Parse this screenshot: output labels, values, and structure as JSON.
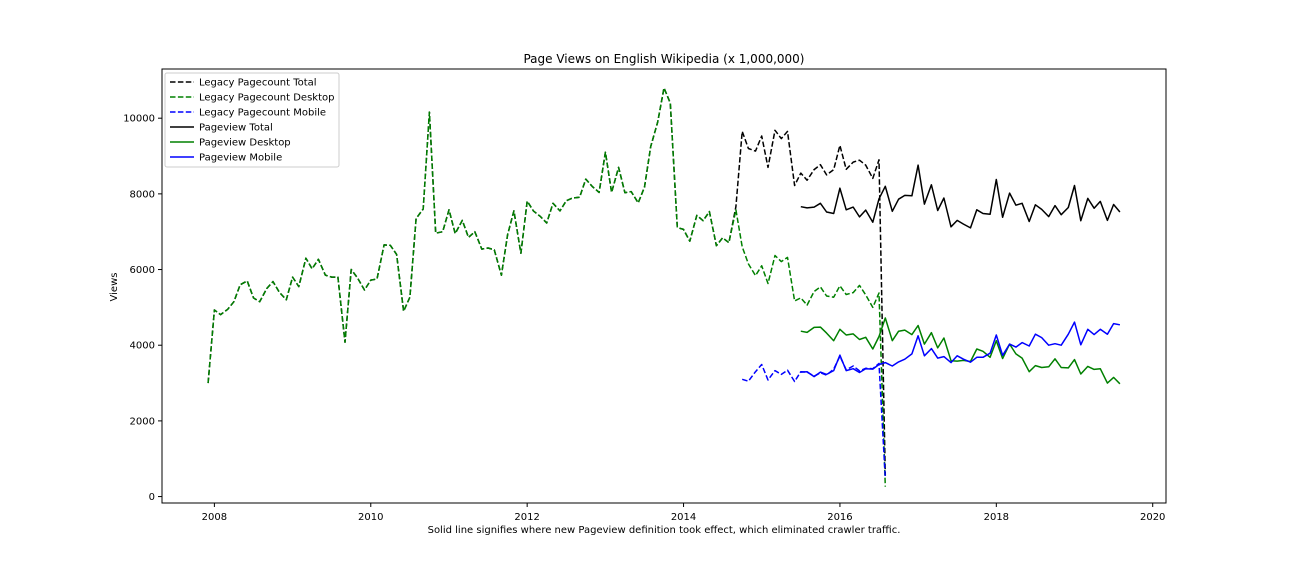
{
  "chart_data": {
    "type": "line",
    "title": "Page Views on English Wikipedia (x 1,000,000)",
    "xlabel": "Solid line signifies where new Pageview definition took effect, which eliminated crawler traffic.",
    "ylabel": "Views",
    "xlim": [
      2007.33,
      2020.17
    ],
    "ylim": [
      -170,
      11300
    ],
    "xticks": [
      2008,
      2010,
      2012,
      2014,
      2016,
      2018,
      2020
    ],
    "yticks": [
      0,
      2000,
      4000,
      6000,
      8000,
      10000
    ],
    "grid": false,
    "legend_position": "upper-left",
    "series": [
      {
        "name": "Legacy Pagecount Total",
        "color": "#000000",
        "style": "dashed",
        "x": [
          2007.92,
          2008.0,
          2008.08,
          2008.17,
          2008.25,
          2008.33,
          2008.42,
          2008.5,
          2008.58,
          2008.67,
          2008.75,
          2008.83,
          2008.92,
          2009.0,
          2009.08,
          2009.17,
          2009.25,
          2009.33,
          2009.42,
          2009.5,
          2009.58,
          2009.67,
          2009.75,
          2009.83,
          2009.92,
          2010.0,
          2010.08,
          2010.17,
          2010.25,
          2010.33,
          2010.42,
          2010.5,
          2010.58,
          2010.67,
          2010.75,
          2010.83,
          2010.92,
          2011.0,
          2011.08,
          2011.17,
          2011.25,
          2011.33,
          2011.42,
          2011.5,
          2011.58,
          2011.67,
          2011.75,
          2011.83,
          2011.92,
          2012.0,
          2012.08,
          2012.17,
          2012.25,
          2012.33,
          2012.42,
          2012.5,
          2012.58,
          2012.67,
          2012.75,
          2012.83,
          2012.92,
          2013.0,
          2013.08,
          2013.17,
          2013.25,
          2013.33,
          2013.42,
          2013.5,
          2013.58,
          2013.67,
          2013.75,
          2013.83,
          2013.92,
          2014.0,
          2014.08,
          2014.17,
          2014.25,
          2014.33,
          2014.42,
          2014.5,
          2014.58,
          2014.67,
          2014.75,
          2014.83,
          2014.92,
          2015.0,
          2015.08,
          2015.17,
          2015.25,
          2015.33,
          2015.42,
          2015.5,
          2015.58,
          2015.67,
          2015.75,
          2015.83,
          2015.92,
          2016.0,
          2016.08,
          2016.17,
          2016.25,
          2016.33,
          2016.42,
          2016.5,
          2016.58
        ],
        "y": [
          3000,
          4930,
          4810,
          4950,
          5150,
          5600,
          5700,
          5250,
          5150,
          5500,
          5680,
          5400,
          5200,
          5800,
          5550,
          6300,
          6020,
          6270,
          5850,
          5800,
          5800,
          4080,
          6000,
          5780,
          5460,
          5720,
          5750,
          6650,
          6640,
          6400,
          4900,
          5270,
          7350,
          7600,
          10160,
          6960,
          7000,
          7580,
          6950,
          7300,
          6850,
          7000,
          6540,
          6570,
          6520,
          5850,
          6920,
          7550,
          6430,
          7810,
          7550,
          7400,
          7230,
          7750,
          7550,
          7820,
          7890,
          7910,
          8390,
          8200,
          8040,
          9100,
          8040,
          8700,
          8030,
          8060,
          7760,
          8180,
          9250,
          9900,
          10800,
          10400,
          7110,
          7060,
          6750,
          7430,
          7290,
          7530,
          6630,
          6840,
          6710,
          7660,
          9650,
          9200,
          9130,
          9530,
          8700,
          9680,
          9460,
          9650,
          8220,
          8550,
          8360,
          8640,
          8770,
          8500,
          8640,
          9280,
          8650,
          8840,
          8890,
          8760,
          8410,
          8900,
          560
        ]
      },
      {
        "name": "Legacy Pagecount Desktop",
        "color": "#008000",
        "style": "dashed",
        "x": [
          2007.92,
          2008.0,
          2008.08,
          2008.17,
          2008.25,
          2008.33,
          2008.42,
          2008.5,
          2008.58,
          2008.67,
          2008.75,
          2008.83,
          2008.92,
          2009.0,
          2009.08,
          2009.17,
          2009.25,
          2009.33,
          2009.42,
          2009.5,
          2009.58,
          2009.67,
          2009.75,
          2009.83,
          2009.92,
          2010.0,
          2010.08,
          2010.17,
          2010.25,
          2010.33,
          2010.42,
          2010.5,
          2010.58,
          2010.67,
          2010.75,
          2010.83,
          2010.92,
          2011.0,
          2011.08,
          2011.17,
          2011.25,
          2011.33,
          2011.42,
          2011.5,
          2011.58,
          2011.67,
          2011.75,
          2011.83,
          2011.92,
          2012.0,
          2012.08,
          2012.17,
          2012.25,
          2012.33,
          2012.42,
          2012.5,
          2012.58,
          2012.67,
          2012.75,
          2012.83,
          2012.92,
          2013.0,
          2013.08,
          2013.17,
          2013.25,
          2013.33,
          2013.42,
          2013.5,
          2013.58,
          2013.67,
          2013.75,
          2013.83,
          2013.92,
          2014.0,
          2014.08,
          2014.17,
          2014.25,
          2014.33,
          2014.42,
          2014.5,
          2014.58,
          2014.67,
          2014.75,
          2014.83,
          2014.92,
          2015.0,
          2015.08,
          2015.17,
          2015.25,
          2015.33,
          2015.42,
          2015.5,
          2015.58,
          2015.67,
          2015.75,
          2015.83,
          2015.92,
          2016.0,
          2016.08,
          2016.17,
          2016.25,
          2016.33,
          2016.42,
          2016.5,
          2016.58
        ],
        "y": [
          3000,
          4930,
          4810,
          4950,
          5150,
          5600,
          5700,
          5250,
          5150,
          5500,
          5680,
          5400,
          5200,
          5800,
          5550,
          6300,
          6020,
          6270,
          5850,
          5800,
          5800,
          4080,
          6000,
          5780,
          5460,
          5720,
          5750,
          6650,
          6640,
          6400,
          4900,
          5270,
          7350,
          7600,
          10160,
          6960,
          7000,
          7580,
          6950,
          7300,
          6850,
          7000,
          6540,
          6570,
          6520,
          5850,
          6920,
          7550,
          6430,
          7810,
          7550,
          7400,
          7230,
          7750,
          7550,
          7820,
          7890,
          7910,
          8390,
          8200,
          8040,
          9100,
          8040,
          8700,
          8030,
          8060,
          7760,
          8180,
          9250,
          9900,
          10800,
          10400,
          7110,
          7060,
          6750,
          7430,
          7290,
          7530,
          6630,
          6840,
          6710,
          7580,
          6600,
          6150,
          5840,
          6100,
          5630,
          6370,
          6210,
          6320,
          5170,
          5250,
          5060,
          5420,
          5540,
          5300,
          5270,
          5570,
          5340,
          5390,
          5580,
          5330,
          5000,
          5380,
          260
        ]
      },
      {
        "name": "Legacy Pagecount Mobile",
        "color": "#0000ff",
        "style": "dashed",
        "x": [
          2014.75,
          2014.83,
          2014.92,
          2015.0,
          2015.08,
          2015.17,
          2015.25,
          2015.33,
          2015.42,
          2015.5,
          2015.58,
          2015.67,
          2015.75,
          2015.83,
          2015.92,
          2016.0,
          2016.08,
          2016.17,
          2016.25,
          2016.33,
          2016.42,
          2016.5,
          2016.58
        ],
        "y": [
          3100,
          3050,
          3300,
          3490,
          3080,
          3330,
          3230,
          3340,
          3040,
          3300,
          3290,
          3180,
          3270,
          3210,
          3370,
          3710,
          3350,
          3450,
          3320,
          3390,
          3380,
          3520,
          480
        ]
      },
      {
        "name": "Pageview Total",
        "color": "#000000",
        "style": "solid",
        "x": [
          2015.5,
          2015.58,
          2015.67,
          2015.75,
          2015.83,
          2015.92,
          2016.0,
          2016.08,
          2016.17,
          2016.25,
          2016.33,
          2016.42,
          2016.5,
          2016.58,
          2016.67,
          2016.75,
          2016.83,
          2016.92,
          2017.0,
          2017.08,
          2017.17,
          2017.25,
          2017.33,
          2017.42,
          2017.5,
          2017.58,
          2017.67,
          2017.75,
          2017.83,
          2017.92,
          2018.0,
          2018.08,
          2018.17,
          2018.25,
          2018.33,
          2018.42,
          2018.5,
          2018.58,
          2018.67,
          2018.75,
          2018.83,
          2018.92,
          2019.0,
          2019.08,
          2019.17,
          2019.25,
          2019.33,
          2019.42,
          2019.5,
          2019.58
        ],
        "y": [
          7660,
          7630,
          7650,
          7750,
          7520,
          7480,
          8150,
          7580,
          7650,
          7390,
          7570,
          7250,
          7870,
          8200,
          7540,
          7860,
          7960,
          7950,
          8760,
          7730,
          8240,
          7560,
          7890,
          7130,
          7300,
          7200,
          7100,
          7580,
          7480,
          7460,
          8380,
          7380,
          8020,
          7700,
          7750,
          7270,
          7710,
          7590,
          7400,
          7690,
          7450,
          7640,
          8220,
          7290,
          7880,
          7620,
          7800,
          7300,
          7720,
          7520
        ]
      },
      {
        "name": "Pageview Desktop",
        "color": "#008000",
        "style": "solid",
        "x": [
          2015.5,
          2015.58,
          2015.67,
          2015.75,
          2015.83,
          2015.92,
          2016.0,
          2016.08,
          2016.17,
          2016.25,
          2016.33,
          2016.42,
          2016.5,
          2016.58,
          2016.67,
          2016.75,
          2016.83,
          2016.92,
          2017.0,
          2017.08,
          2017.17,
          2017.25,
          2017.33,
          2017.42,
          2017.5,
          2017.58,
          2017.67,
          2017.75,
          2017.83,
          2017.92,
          2018.0,
          2018.08,
          2018.17,
          2018.25,
          2018.33,
          2018.42,
          2018.5,
          2018.58,
          2018.67,
          2018.75,
          2018.83,
          2018.92,
          2019.0,
          2019.08,
          2019.17,
          2019.25,
          2019.33,
          2019.42,
          2019.5,
          2019.58
        ],
        "y": [
          4370,
          4340,
          4470,
          4480,
          4320,
          4120,
          4420,
          4270,
          4300,
          4150,
          4210,
          3900,
          4230,
          4720,
          4120,
          4370,
          4400,
          4280,
          4520,
          4030,
          4330,
          3930,
          4190,
          3590,
          3580,
          3600,
          3570,
          3900,
          3840,
          3680,
          4120,
          3650,
          4030,
          3770,
          3660,
          3300,
          3460,
          3410,
          3430,
          3640,
          3410,
          3400,
          3620,
          3240,
          3440,
          3360,
          3380,
          3000,
          3150,
          2980
        ]
      },
      {
        "name": "Pageview Mobile",
        "color": "#0000ff",
        "style": "solid",
        "x": [
          2015.5,
          2015.58,
          2015.67,
          2015.75,
          2015.83,
          2015.92,
          2016.0,
          2016.08,
          2016.17,
          2016.25,
          2016.33,
          2016.42,
          2016.5,
          2016.58,
          2016.67,
          2016.75,
          2016.83,
          2016.92,
          2017.0,
          2017.08,
          2017.17,
          2017.25,
          2017.33,
          2017.42,
          2017.5,
          2017.58,
          2017.67,
          2017.75,
          2017.83,
          2017.92,
          2018.0,
          2018.08,
          2018.17,
          2018.25,
          2018.33,
          2018.42,
          2018.5,
          2018.58,
          2018.67,
          2018.75,
          2018.83,
          2018.92,
          2019.0,
          2019.08,
          2019.17,
          2019.25,
          2019.33,
          2019.42,
          2019.5,
          2019.58
        ],
        "y": [
          3290,
          3300,
          3170,
          3290,
          3230,
          3330,
          3740,
          3330,
          3380,
          3280,
          3380,
          3370,
          3490,
          3540,
          3450,
          3560,
          3630,
          3770,
          4250,
          3720,
          3910,
          3660,
          3700,
          3540,
          3720,
          3630,
          3550,
          3680,
          3680,
          3790,
          4270,
          3730,
          4030,
          3950,
          4070,
          3980,
          4290,
          4200,
          4000,
          4040,
          4000,
          4290,
          4610,
          4010,
          4420,
          4280,
          4420,
          4290,
          4570,
          4540
        ]
      }
    ]
  }
}
